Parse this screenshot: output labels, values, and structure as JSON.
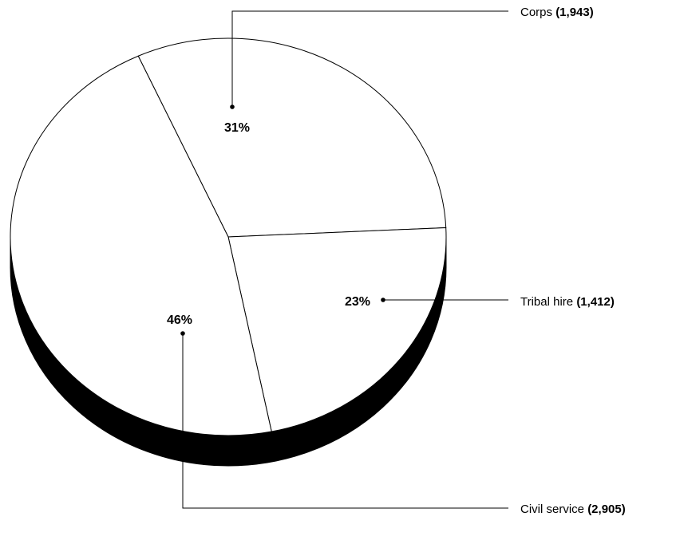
{
  "chart_data": {
    "type": "pie",
    "style": "3d",
    "slices": [
      {
        "label": "Corps",
        "value": 1943,
        "value_label": "(1,943)",
        "percent_label": "31%",
        "color": "#ffffff"
      },
      {
        "label": "Tribal hire",
        "value": 1412,
        "value_label": "(1,412)",
        "percent_label": "23%",
        "color": "#ffffff"
      },
      {
        "label": "Civil service",
        "value": 2905,
        "value_label": "(2,905)",
        "percent_label": "46%",
        "color": "#ffffff"
      }
    ],
    "edge_color": "#000000",
    "side_color": "#000000"
  }
}
